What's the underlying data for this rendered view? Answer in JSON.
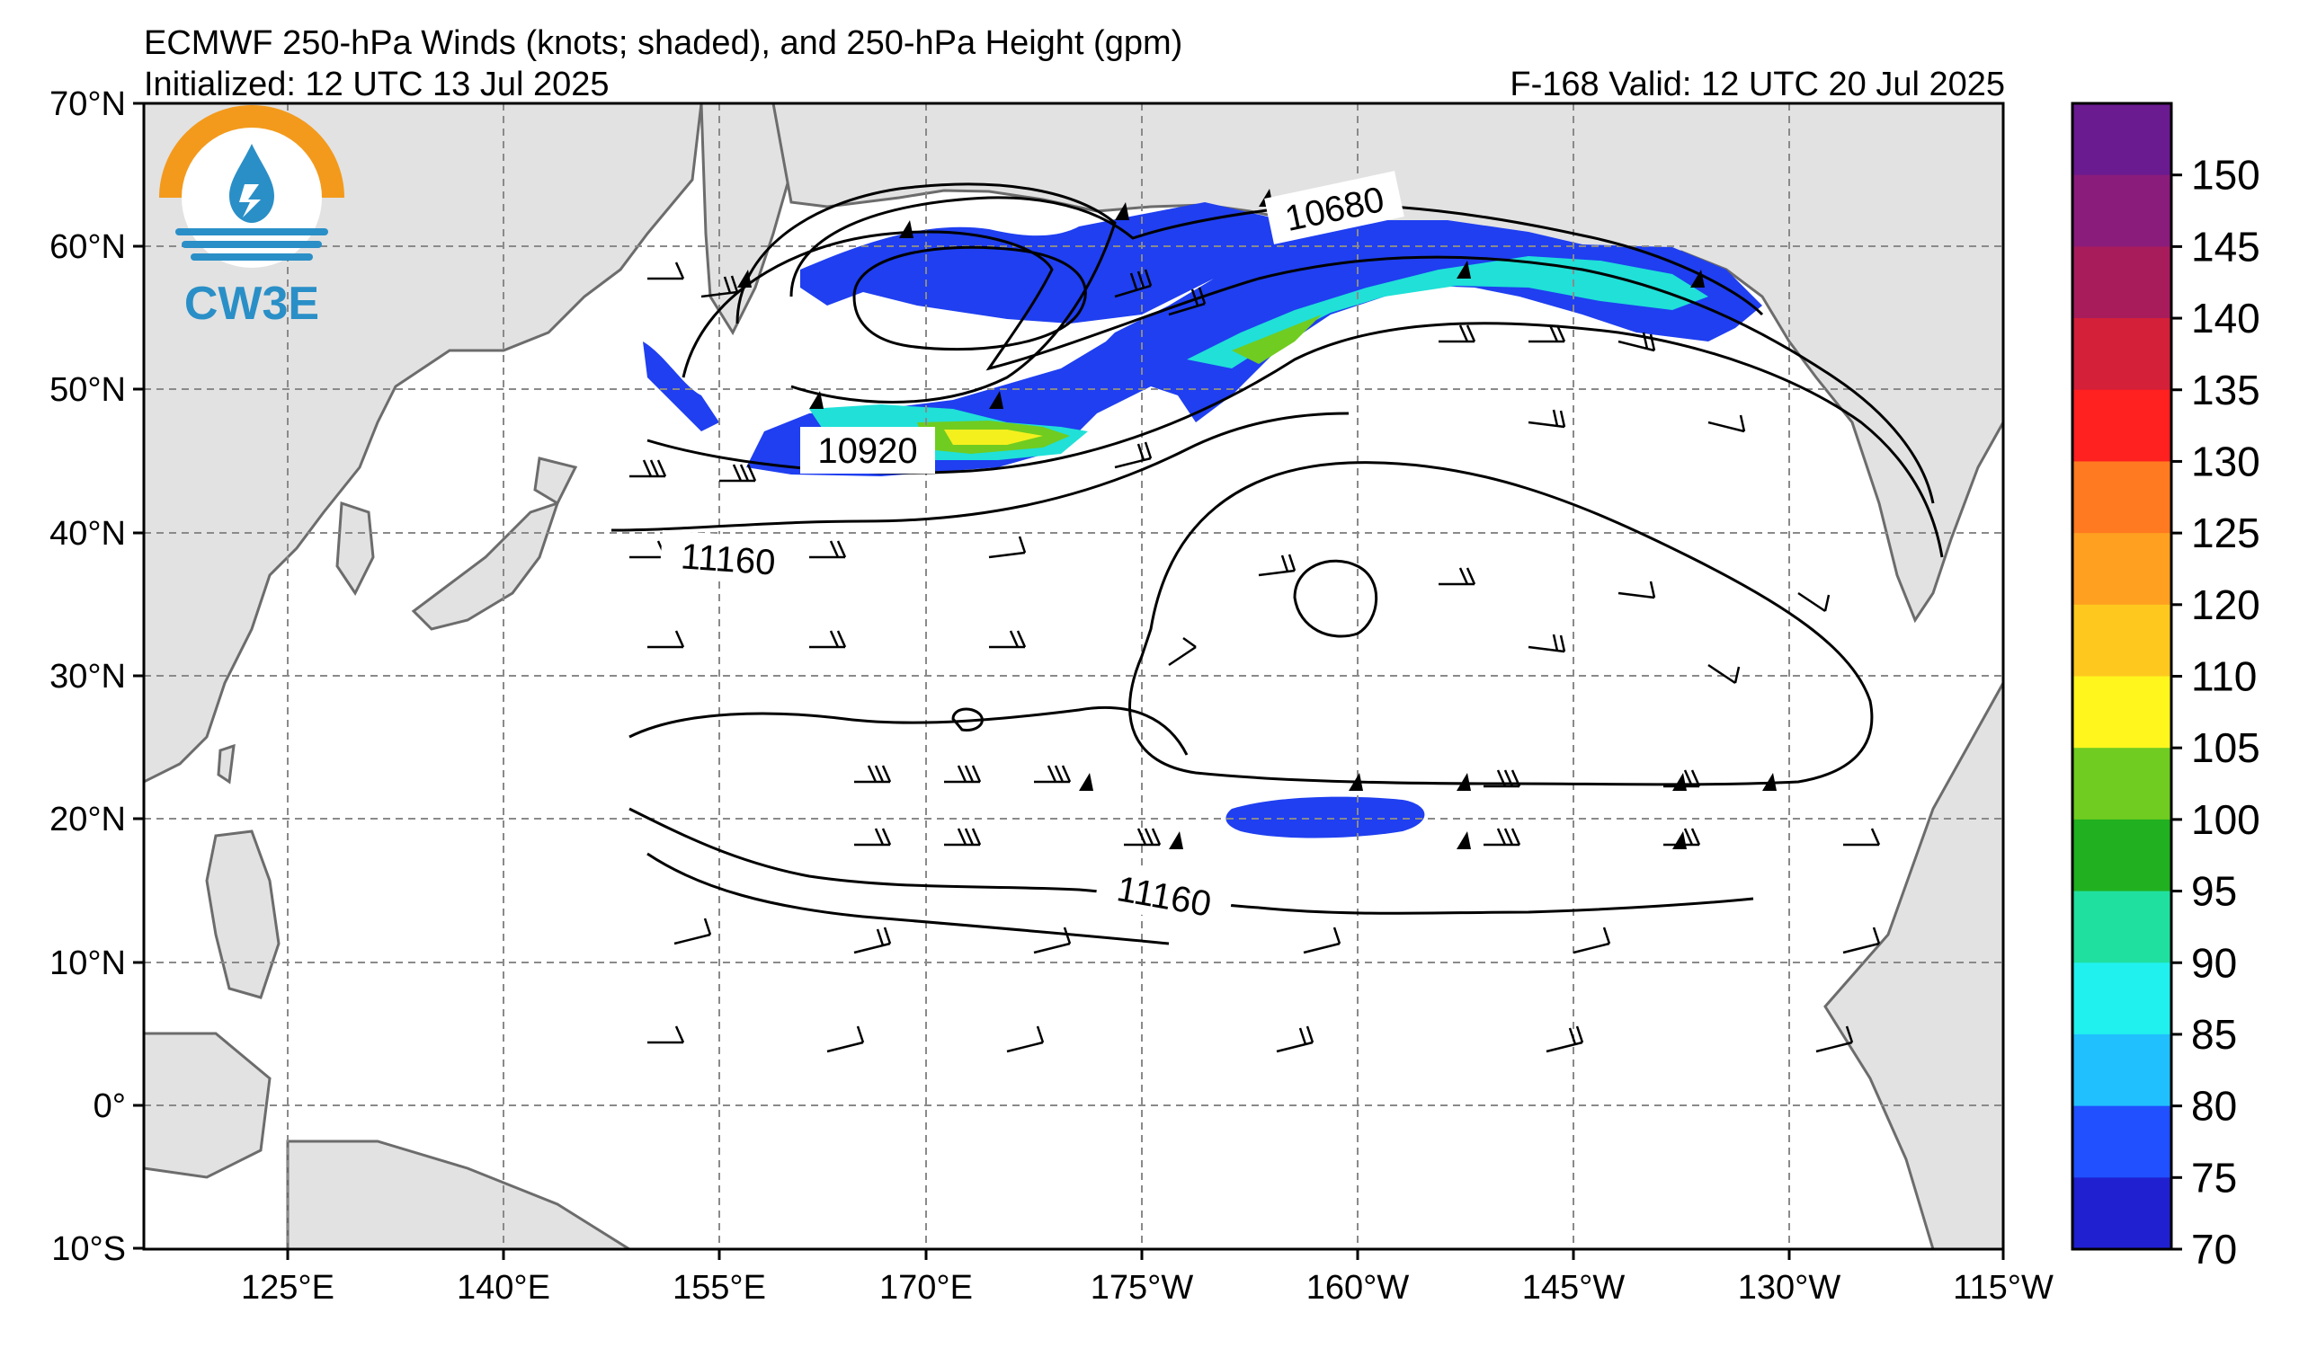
{
  "header": {
    "title": "ECMWF 250-hPa Winds (knots; shaded), and 250-hPa Height (gpm)",
    "initialized": "Initialized: 12 UTC 13 Jul 2025",
    "valid": "F-168  Valid: 12 UTC 20 Jul 2025"
  },
  "logo": {
    "text": "CW3E",
    "ring_color": "#f39a1c",
    "wave_color": "#2a8fc7"
  },
  "axes": {
    "lat_labels": [
      "70°N",
      "60°N",
      "50°N",
      "40°N",
      "30°N",
      "20°N",
      "10°N",
      "0°",
      "10°S"
    ],
    "lon_labels": [
      "125°E",
      "140°E",
      "155°E",
      "170°E",
      "175°W",
      "160°W",
      "145°W",
      "130°W",
      "115°W"
    ]
  },
  "contour_labels": [
    "10680",
    "10920",
    "11160",
    "11160"
  ],
  "colorbar": {
    "labels": [
      "150",
      "145",
      "140",
      "135",
      "130",
      "125",
      "120",
      "110",
      "105",
      "100",
      "95",
      "90",
      "85",
      "80",
      "75",
      "70"
    ],
    "colors": [
      "#6a1b8f",
      "#8a1c7c",
      "#a81c5c",
      "#d42038",
      "#ff2020",
      "#ff7a20",
      "#ffa020",
      "#ffc81e",
      "#fff61e",
      "#70cc20",
      "#20b020",
      "#20e0a0",
      "#20f0ee",
      "#20c0ff",
      "#2050ff",
      "#2020d0"
    ]
  },
  "colors": {
    "land": "#e2e2e2",
    "coast": "#6c6c6c",
    "grid": "#8a8a8a",
    "jet_blue": "#1f3ff0",
    "jet_cyan": "#20e0d8",
    "jet_green": "#70cc20",
    "jet_yellow": "#f4f01e"
  }
}
